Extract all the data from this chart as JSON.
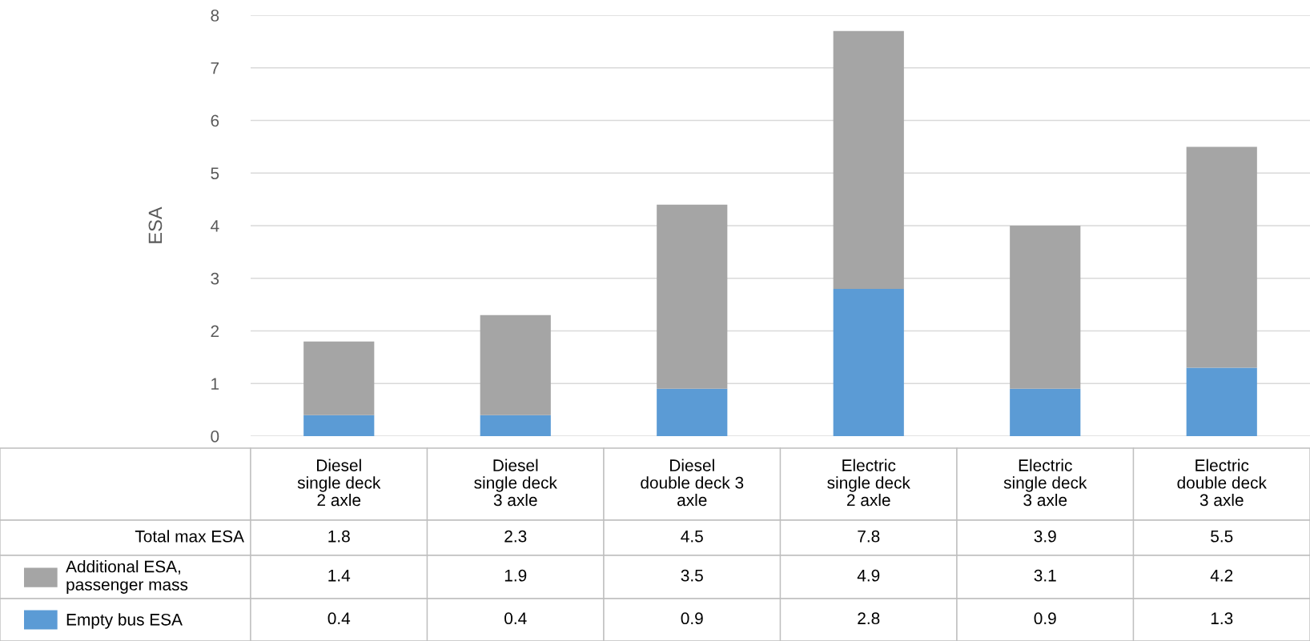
{
  "chart_data": {
    "type": "bar",
    "stacked": true,
    "ylabel": "ESA",
    "categories": [
      "Diesel\nsingle deck\n2 axle",
      "Diesel\nsingle deck\n3 axle",
      "Diesel\ndouble deck 3\naxle",
      "Electric\nsingle deck\n2 axle",
      "Electric\nsingle deck\n3 axle",
      "Electric\ndouble deck\n3 axle"
    ],
    "series": [
      {
        "name": "Empty bus ESA",
        "color": "#5b9bd5",
        "values": [
          0.4,
          0.4,
          0.9,
          2.8,
          0.9,
          1.3
        ]
      },
      {
        "name": "Additional ESA,\npassenger mass",
        "color": "#a5a5a5",
        "values": [
          1.4,
          1.9,
          3.5,
          4.9,
          3.1,
          4.2
        ]
      }
    ],
    "annotations": [
      "Total max ESA",
      "1.8",
      "2.3",
      "4.5",
      "7.8",
      "3.9",
      "5.5"
    ],
    "data_labels": true,
    "legend": "bottom left",
    "ylim": [
      0,
      8
    ],
    "yticks": [
      0,
      1,
      2,
      3,
      4,
      5,
      6,
      7,
      8
    ],
    "grid": "y"
  }
}
